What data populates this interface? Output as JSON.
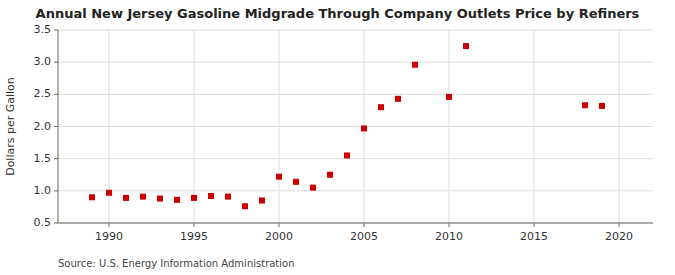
{
  "chart_data": {
    "type": "scatter",
    "title": "Annual New Jersey Gasoline Midgrade Through Company Outlets Price by Refiners",
    "y_label": "Dollars per Gallon",
    "source": "Source: U.S. Energy Information Administration",
    "x": [
      1989,
      1990,
      1991,
      1992,
      1993,
      1994,
      1995,
      1996,
      1997,
      1998,
      1999,
      2000,
      2001,
      2002,
      2003,
      2004,
      2005,
      2006,
      2007,
      2008,
      2010,
      2011,
      2018,
      2019
    ],
    "values": [
      0.9,
      0.97,
      0.89,
      0.91,
      0.88,
      0.86,
      0.89,
      0.92,
      0.91,
      0.76,
      0.85,
      1.22,
      1.14,
      1.05,
      1.25,
      1.55,
      1.97,
      2.3,
      2.43,
      2.96,
      2.46,
      3.25,
      2.33,
      2.32
    ],
    "color": "#cc0000",
    "marker": "square",
    "xlim": [
      1987,
      2022
    ],
    "ylim": [
      0.5,
      3.5
    ],
    "xticks": [
      1990,
      1995,
      2000,
      2005,
      2010,
      2015,
      2020
    ],
    "yticks": [
      0.5,
      {
        "value": 1,
        "label": "1.0"
      },
      1.5,
      {
        "value": 2,
        "label": "2.0"
      },
      2.5,
      {
        "value": 3,
        "label": "3.0"
      },
      3.5
    ],
    "grid": true
  }
}
